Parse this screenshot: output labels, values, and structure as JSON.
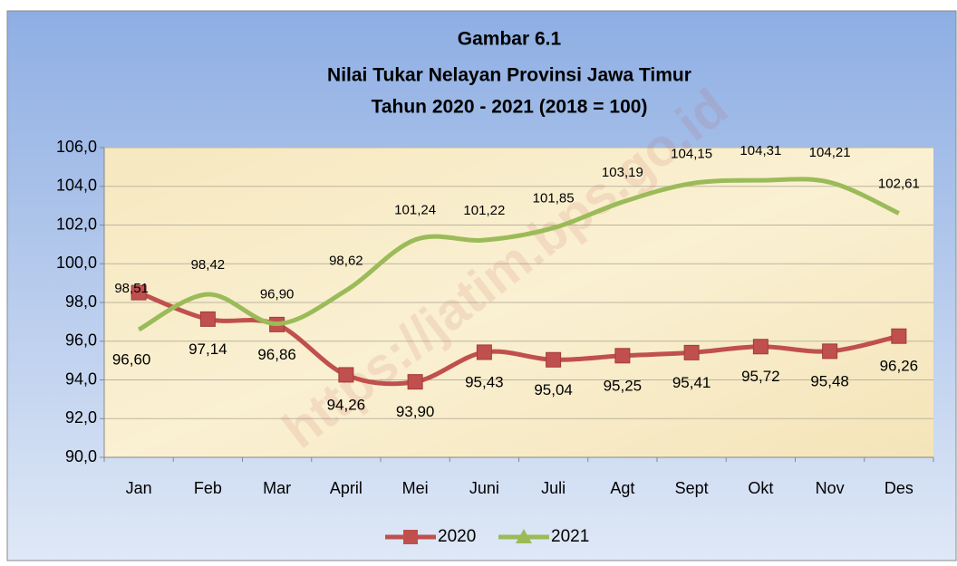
{
  "chart_data": {
    "type": "line",
    "title": [
      "Gambar 6.1",
      "Nilai Tukar Nelayan Provinsi Jawa Timur",
      "Tahun 2020 - 2021 (2018 = 100)"
    ],
    "watermark": "https://jatim.bps.go.id",
    "categories": [
      "Jan",
      "Feb",
      "Mar",
      "April",
      "Mei",
      "Juni",
      "Juli",
      "Agt",
      "Sept",
      "Okt",
      "Nov",
      "Des"
    ],
    "series": [
      {
        "name": "2020",
        "color": "#c0504d",
        "marker": "square",
        "values": [
          98.51,
          97.14,
          96.86,
          94.26,
          93.9,
          95.43,
          95.04,
          95.25,
          95.41,
          95.72,
          95.48,
          96.26
        ],
        "value_labels": [
          "98,51",
          "97,14",
          "96,86",
          "94,26",
          "93,90",
          "95,43",
          "95,04",
          "95,25",
          "95,41",
          "95,72",
          "95,48",
          "96,26"
        ]
      },
      {
        "name": "2021",
        "color": "#9bbb59",
        "marker": "triangle",
        "values": [
          96.6,
          98.42,
          96.9,
          98.62,
          101.24,
          101.22,
          101.85,
          103.19,
          104.15,
          104.31,
          104.21,
          102.61
        ],
        "value_labels": [
          "96,60",
          "98,42",
          "96,90",
          "98,62",
          "101,24",
          "101,22",
          "101,85",
          "103,19",
          "104,15",
          "104,31",
          "104,21",
          "102,61"
        ]
      }
    ],
    "ylim": [
      90,
      106
    ],
    "yticks": [
      {
        "value": 90,
        "label": "90,0"
      },
      {
        "value": 92,
        "label": "92,0"
      },
      {
        "value": 94,
        "label": "94,0"
      },
      {
        "value": 96,
        "label": "96,0"
      },
      {
        "value": 98,
        "label": "98,0"
      },
      {
        "value": 100,
        "label": "100,0"
      },
      {
        "value": 102,
        "label": "102,0"
      },
      {
        "value": 104,
        "label": "104,0"
      },
      {
        "value": 106,
        "label": "106,0"
      }
    ],
    "grid": true,
    "legend": "bottom"
  }
}
